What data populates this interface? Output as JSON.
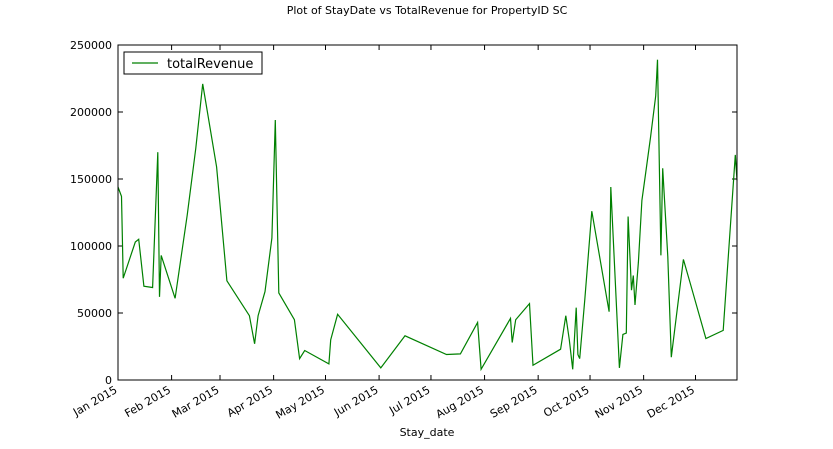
{
  "chart_data": {
    "type": "line",
    "title": "Plot of StayDate vs TotalRevenue for PropertyID SC",
    "x_label": "Stay_date",
    "x": [
      0,
      2,
      3,
      10,
      12,
      13,
      15,
      20,
      23,
      24,
      25,
      33,
      40,
      45,
      49,
      57,
      63,
      76,
      79,
      81,
      85,
      89,
      91,
      93,
      102,
      105,
      108,
      122,
      123,
      127,
      152,
      166,
      190,
      198,
      208,
      210,
      227,
      228,
      230,
      238,
      240,
      256,
      259,
      261,
      263,
      265,
      266,
      267,
      270,
      274,
      284,
      285,
      290,
      292,
      294,
      295,
      297,
      298,
      299,
      301,
      303,
      305,
      308,
      311,
      312,
      314,
      315,
      318,
      320,
      327,
      331,
      340,
      350,
      357,
      358
    ],
    "series": [
      {
        "name": "totalRevenue",
        "color": "#008000",
        "values": [
          144000,
          137000,
          76000,
          103000,
          105000,
          93000,
          70000,
          69000,
          170000,
          62000,
          93000,
          61000,
          123000,
          173000,
          221000,
          159000,
          74000,
          48000,
          27000,
          48000,
          66000,
          106000,
          194000,
          65000,
          45000,
          16000,
          22000,
          12000,
          30000,
          49000,
          9000,
          33000,
          19000,
          19500,
          43000,
          8000,
          46000,
          28000,
          45000,
          57000,
          11000,
          23000,
          48000,
          30000,
          8000,
          54000,
          19000,
          16000,
          60000,
          126000,
          51000,
          144000,
          9000,
          34000,
          35000,
          122000,
          67000,
          78000,
          56000,
          88000,
          134000,
          153000,
          181000,
          212000,
          239000,
          93000,
          158000,
          92000,
          17000,
          90000,
          72000,
          31000,
          37000,
          168000,
          149000
        ]
      }
    ],
    "xlim": [
      0,
      358
    ],
    "xticks": [
      {
        "value": 0,
        "label": "Jan 2015"
      },
      {
        "value": 31,
        "label": "Feb 2015"
      },
      {
        "value": 59,
        "label": "Mar 2015"
      },
      {
        "value": 90,
        "label": "Apr 2015"
      },
      {
        "value": 120,
        "label": "May 2015"
      },
      {
        "value": 151,
        "label": "Jun 2015"
      },
      {
        "value": 181,
        "label": "Jul 2015"
      },
      {
        "value": 212,
        "label": "Aug 2015"
      },
      {
        "value": 243,
        "label": "Sep 2015"
      },
      {
        "value": 273,
        "label": "Oct 2015"
      },
      {
        "value": 304,
        "label": "Nov 2015"
      },
      {
        "value": 334,
        "label": "Dec 2015"
      }
    ],
    "ylim": [
      0,
      250000
    ],
    "yticks": [
      0,
      50000,
      100000,
      150000,
      200000,
      250000
    ],
    "legend": "upper left"
  }
}
